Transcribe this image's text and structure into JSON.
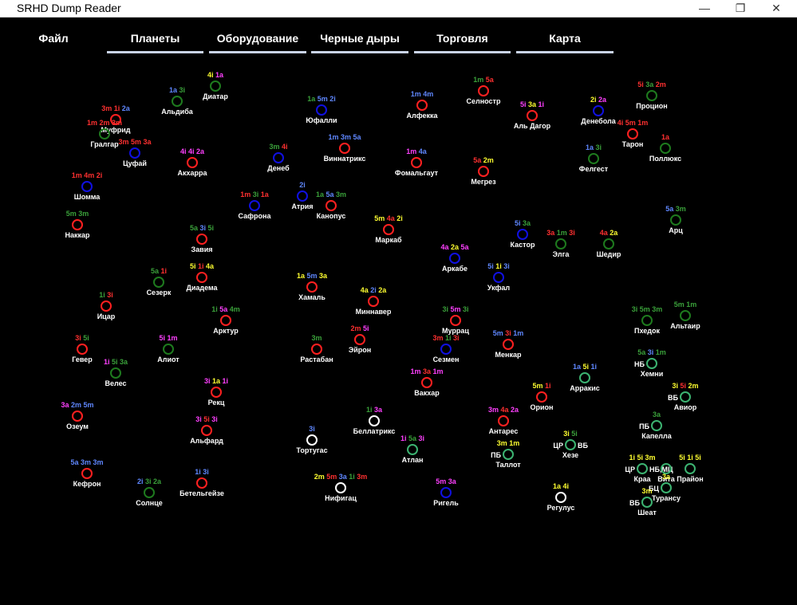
{
  "window": {
    "title": "SRHD Dump Reader",
    "controls": {
      "minimize": "—",
      "maximize": "❐",
      "close": "✕"
    }
  },
  "menu": {
    "file": "Файл",
    "tabs": [
      "Планеты",
      "Оборудование",
      "Черные дыры",
      "Торговля",
      "Карта"
    ]
  },
  "colors": {
    "red": "#ff2020",
    "blue": "#1010e0",
    "green": "#1e7a1e",
    "yellow": "#ffff00",
    "magenta": "#ff33ff",
    "lightblue": "#6699ff",
    "white": "#ffffff",
    "base": "#3cb371",
    "t_red": "#ff3030",
    "t_blue": "#5f87ff",
    "t_green": "#3aa03a",
    "t_yellow": "#ffff30",
    "t_magenta": "#ff40ff"
  },
  "systems": [
    {
      "name": "Диатар",
      "ring": "green",
      "tags": [
        [
          "4i",
          "yellow"
        ],
        [
          "1a",
          "magenta"
        ]
      ]
    },
    {
      "name": "Альдиба",
      "ring": "green",
      "tags": [
        [
          "1a",
          "blue"
        ],
        [
          "3i",
          "green"
        ]
      ]
    },
    {
      "name": "Муфрид",
      "ring": "red",
      "tags": [
        [
          "3m",
          "red"
        ],
        [
          "1i",
          "red"
        ],
        [
          "2a",
          "blue"
        ]
      ]
    },
    {
      "name": "Гралгар",
      "ring": "green",
      "tags": [
        [
          "1m",
          "red"
        ],
        [
          "2m",
          "red"
        ],
        [
          "3m",
          "red"
        ]
      ]
    },
    {
      "name": "Цуфай",
      "ring": "blue",
      "tags": [
        [
          "3m",
          "red"
        ],
        [
          "5m",
          "red"
        ],
        [
          "3a",
          "red"
        ]
      ]
    },
    {
      "name": "Акхарра",
      "ring": "red",
      "tags": [
        [
          "4i",
          "magenta"
        ],
        [
          "4i",
          "magenta"
        ],
        [
          "2a",
          "magenta"
        ]
      ]
    },
    {
      "name": "Шомма",
      "ring": "blue",
      "tags": [
        [
          "1m",
          "red"
        ],
        [
          "4m",
          "red"
        ],
        [
          "2i",
          "red"
        ]
      ]
    },
    {
      "name": "Наккар",
      "ring": "red",
      "tags": [
        [
          "5m",
          "green"
        ],
        [
          "3m",
          "green"
        ]
      ]
    },
    {
      "name": "Юфалли",
      "ring": "blue",
      "tags": [
        [
          "1a",
          "green"
        ],
        [
          "5m",
          "blue"
        ],
        [
          "2i",
          "blue"
        ]
      ]
    },
    {
      "name": "Денеб",
      "ring": "blue",
      "tags": [
        [
          "3m",
          "green"
        ],
        [
          "4i",
          "red"
        ]
      ]
    },
    {
      "name": "Виннатрикс",
      "ring": "red",
      "tags": [
        [
          "1m",
          "blue"
        ],
        [
          "3m",
          "blue"
        ],
        [
          "5a",
          "blue"
        ]
      ]
    },
    {
      "name": "Алфекка",
      "ring": "red",
      "tags": [
        [
          "1m",
          "blue"
        ],
        [
          "4m",
          "blue"
        ]
      ]
    },
    {
      "name": "Фомальгаут",
      "ring": "red",
      "tags": [
        [
          "1m",
          "magenta"
        ],
        [
          "4a",
          "blue"
        ]
      ]
    },
    {
      "name": "Селностр",
      "ring": "red",
      "tags": [
        [
          "1m",
          "green"
        ],
        [
          "5a",
          "red"
        ]
      ]
    },
    {
      "name": "Аль Дагор",
      "ring": "red",
      "tags": [
        [
          "5i",
          "magenta"
        ],
        [
          "3a",
          "yellow"
        ],
        [
          "1i",
          "magenta"
        ]
      ]
    },
    {
      "name": "Денебола",
      "ring": "blue",
      "tags": [
        [
          "2i",
          "yellow"
        ],
        [
          "2a",
          "magenta"
        ]
      ]
    },
    {
      "name": "Процион",
      "ring": "green",
      "tags": [
        [
          "5i",
          "red"
        ],
        [
          "3a",
          "green"
        ],
        [
          "2m",
          "red"
        ]
      ]
    },
    {
      "name": "Тарон",
      "ring": "red",
      "tags": [
        [
          "4i",
          "red"
        ],
        [
          "5m",
          "red"
        ],
        [
          "1m",
          "red"
        ]
      ]
    },
    {
      "name": "Поллюкс",
      "ring": "green",
      "tags": [
        [
          "1a",
          "red"
        ]
      ]
    },
    {
      "name": "Фелгест",
      "ring": "green",
      "tags": [
        [
          "1a",
          "blue"
        ],
        [
          "3i",
          "green"
        ]
      ]
    },
    {
      "name": "Мегрез",
      "ring": "red",
      "tags": [
        [
          "5a",
          "red"
        ],
        [
          "2m",
          "yellow"
        ]
      ]
    },
    {
      "name": "Сафрона",
      "ring": "blue",
      "tags": [
        [
          "1m",
          "red"
        ],
        [
          "3i",
          "green"
        ],
        [
          "1a",
          "red"
        ]
      ]
    },
    {
      "name": "Атрия",
      "ring": "blue",
      "tags": [
        [
          "2i",
          "blue"
        ]
      ]
    },
    {
      "name": "Канопус",
      "ring": "red",
      "tags": [
        [
          "1a",
          "green"
        ],
        [
          "5a",
          "blue"
        ],
        [
          "3m",
          "green"
        ]
      ]
    },
    {
      "name": "Завия",
      "ring": "red",
      "tags": [
        [
          "5a",
          "green"
        ],
        [
          "3i",
          "blue"
        ],
        [
          "5i",
          "green"
        ]
      ]
    },
    {
      "name": "Маркаб",
      "ring": "red",
      "tags": [
        [
          "5m",
          "yellow"
        ],
        [
          "4a",
          "red"
        ],
        [
          "2i",
          "yellow"
        ]
      ]
    },
    {
      "name": "Кастор",
      "ring": "blue",
      "tags": [
        [
          "5i",
          "blue"
        ],
        [
          "3a",
          "green"
        ]
      ]
    },
    {
      "name": "Элга",
      "ring": "green",
      "tags": [
        [
          "3a",
          "red"
        ],
        [
          "1m",
          "green"
        ],
        [
          "3i",
          "red"
        ]
      ]
    },
    {
      "name": "Шедир",
      "ring": "green",
      "tags": [
        [
          "4a",
          "red"
        ],
        [
          "2a",
          "yellow"
        ]
      ]
    },
    {
      "name": "Арц",
      "ring": "green",
      "tags": [
        [
          "5a",
          "blue"
        ],
        [
          "3m",
          "green"
        ]
      ]
    },
    {
      "name": "Аркабе",
      "ring": "blue",
      "tags": [
        [
          "4a",
          "magenta"
        ],
        [
          "2a",
          "yellow"
        ],
        [
          "5a",
          "magenta"
        ]
      ]
    },
    {
      "name": "Укфал",
      "ring": "blue",
      "tags": [
        [
          "5i",
          "blue"
        ],
        [
          "1i",
          "yellow"
        ],
        [
          "3i",
          "blue"
        ]
      ]
    },
    {
      "name": "Сезерк",
      "ring": "green",
      "tags": [
        [
          "5a",
          "green"
        ],
        [
          "1i",
          "red"
        ]
      ]
    },
    {
      "name": "Диадема",
      "ring": "red",
      "tags": [
        [
          "5i",
          "yellow"
        ],
        [
          "1i",
          "red"
        ],
        [
          "4a",
          "yellow"
        ]
      ]
    },
    {
      "name": "Хамаль",
      "ring": "red",
      "tags": [
        [
          "1a",
          "yellow"
        ],
        [
          "5m",
          "blue"
        ],
        [
          "3a",
          "yellow"
        ]
      ]
    },
    {
      "name": "Миннавер",
      "ring": "red",
      "tags": [
        [
          "4a",
          "yellow"
        ],
        [
          "2i",
          "blue"
        ],
        [
          "2a",
          "yellow"
        ]
      ]
    },
    {
      "name": "Ицар",
      "ring": "red",
      "tags": [
        [
          "1i",
          "green"
        ],
        [
          "3i",
          "red"
        ]
      ]
    },
    {
      "name": "Арктур",
      "ring": "red",
      "tags": [
        [
          "1i",
          "green"
        ],
        [
          "5a",
          "magenta"
        ],
        [
          "4m",
          "green"
        ]
      ]
    },
    {
      "name": "Муррац",
      "ring": "red",
      "tags": [
        [
          "3i",
          "green"
        ],
        [
          "5m",
          "magenta"
        ],
        [
          "3i",
          "green"
        ]
      ]
    },
    {
      "name": "Пхедок",
      "ring": "green",
      "tags": [
        [
          "3i",
          "green"
        ],
        [
          "5m",
          "green"
        ],
        [
          "3m",
          "green"
        ]
      ]
    },
    {
      "name": "Альтаир",
      "ring": "green",
      "tags": [
        [
          "5m",
          "green"
        ],
        [
          "1m",
          "green"
        ]
      ]
    },
    {
      "name": "Гевер",
      "ring": "red",
      "tags": [
        [
          "3i",
          "red"
        ],
        [
          "5i",
          "green"
        ]
      ]
    },
    {
      "name": "Алиот",
      "ring": "green",
      "tags": [
        [
          "5i",
          "magenta"
        ],
        [
          "1m",
          "magenta"
        ]
      ]
    },
    {
      "name": "Растабан",
      "ring": "red",
      "tags": [
        [
          "3m",
          "green"
        ]
      ]
    },
    {
      "name": "Эйрон",
      "ring": "red",
      "tags": [
        [
          "2m",
          "red"
        ],
        [
          "5i",
          "magenta"
        ]
      ]
    },
    {
      "name": "Сезмен",
      "ring": "blue",
      "tags": [
        [
          "3m",
          "red"
        ],
        [
          "1i",
          "green"
        ],
        [
          "3i",
          "red"
        ]
      ]
    },
    {
      "name": "Менкар",
      "ring": "red",
      "tags": [
        [
          "5m",
          "blue"
        ],
        [
          "3i",
          "red"
        ],
        [
          "1m",
          "blue"
        ]
      ]
    },
    {
      "name": "Велес",
      "ring": "green",
      "tags": [
        [
          "1i",
          "magenta"
        ],
        [
          "5i",
          "green"
        ],
        [
          "3a",
          "green"
        ]
      ]
    },
    {
      "name": "Вакхар",
      "ring": "red",
      "tags": [
        [
          "1m",
          "magenta"
        ],
        [
          "3a",
          "red"
        ],
        [
          "1m",
          "magenta"
        ]
      ]
    },
    {
      "name": "Рекц",
      "ring": "red",
      "tags": [
        [
          "3i",
          "magenta"
        ],
        [
          "1a",
          "yellow"
        ],
        [
          "1i",
          "magenta"
        ]
      ]
    },
    {
      "name": "Орион",
      "ring": "red",
      "tags": [
        [
          "5m",
          "yellow"
        ],
        [
          "1i",
          "red"
        ]
      ]
    },
    {
      "name": "Озеум",
      "ring": "red",
      "tags": [
        [
          "3a",
          "magenta"
        ],
        [
          "2m",
          "blue"
        ],
        [
          "5m",
          "blue"
        ]
      ]
    },
    {
      "name": "Альфард",
      "ring": "red",
      "tags": [
        [
          "3i",
          "magenta"
        ],
        [
          "5i",
          "red"
        ],
        [
          "3i",
          "magenta"
        ]
      ]
    },
    {
      "name": "Беллатрикс",
      "ring": "white",
      "tags": [
        [
          "1i",
          "green"
        ],
        [
          "3a",
          "magenta"
        ]
      ]
    },
    {
      "name": "Антарес",
      "ring": "red",
      "tags": [
        [
          "3m",
          "magenta"
        ],
        [
          "4a",
          "red"
        ],
        [
          "2a",
          "magenta"
        ]
      ]
    },
    {
      "name": "Тортугас",
      "ring": "white",
      "tags": [
        [
          "3i",
          "blue"
        ]
      ]
    },
    {
      "name": "Атлан",
      "ring": "base",
      "tags": [
        [
          "1i",
          "magenta"
        ],
        [
          "5a",
          "green"
        ],
        [
          "3i",
          "magenta"
        ]
      ]
    },
    {
      "name": "Кефрон",
      "ring": "red",
      "tags": [
        [
          "5a",
          "blue"
        ],
        [
          "3m",
          "blue"
        ],
        [
          "3m",
          "blue"
        ]
      ]
    },
    {
      "name": "Солнце",
      "ring": "green",
      "tags": [
        [
          "2i",
          "blue"
        ],
        [
          "3i",
          "green"
        ],
        [
          "2a",
          "green"
        ]
      ]
    },
    {
      "name": "Бетельгейзе",
      "ring": "red",
      "tags": [
        [
          "1i",
          "blue"
        ],
        [
          "3i",
          "blue"
        ]
      ]
    },
    {
      "name": "Нифигац",
      "ring": "white",
      "tags": [
        [
          "2m",
          "yellow"
        ],
        [
          "5m",
          "red"
        ],
        [
          "3a",
          "blue"
        ],
        [
          "1i",
          "green"
        ],
        [
          "3m",
          "red"
        ]
      ]
    },
    {
      "name": "Ригель",
      "ring": "blue",
      "tags": [
        [
          "5m",
          "magenta"
        ],
        [
          "3a",
          "magenta"
        ]
      ]
    },
    {
      "name": "Регулус",
      "ring": "white",
      "tags": [
        [
          "1a",
          "yellow"
        ],
        [
          "4i",
          "yellow"
        ]
      ]
    },
    {
      "name": "Арракис",
      "ring": "base",
      "tags": [
        [
          "1a",
          "blue"
        ],
        [
          "5i",
          "yellow"
        ],
        [
          "1i",
          "blue"
        ]
      ]
    },
    {
      "name": "Хемни",
      "ring": "base",
      "prefix": "НБ",
      "tags": [
        [
          "5a",
          "green"
        ],
        [
          "3i",
          "blue"
        ],
        [
          "1m",
          "green"
        ]
      ]
    },
    {
      "name": "Авиор",
      "ring": "base",
      "prefix": "ВБ",
      "tags": [
        [
          "3i",
          "yellow"
        ],
        [
          "5i",
          "red"
        ],
        [
          "2m",
          "yellow"
        ]
      ]
    },
    {
      "name": "Капелла",
      "ring": "base",
      "prefix": "ПБ",
      "tags": [
        [
          "3a",
          "green"
        ]
      ]
    },
    {
      "name": "Хезе",
      "ring": "base",
      "prefix": "ЦР",
      "suffix": "ВБ",
      "tags": [
        [
          "3i",
          "yellow"
        ],
        [
          "5i",
          "green"
        ]
      ]
    },
    {
      "name": "Таллот",
      "ring": "base",
      "prefix": "ПБ",
      "tags": [
        [
          "3m",
          "yellow"
        ],
        [
          "1m",
          "yellow"
        ]
      ]
    },
    {
      "name": "Краа",
      "ring": "base",
      "prefix": "ЦР",
      "suffix": "НБ,МЦ",
      "tags": [
        [
          "1i",
          "yellow"
        ],
        [
          "5i",
          "yellow"
        ],
        [
          "3m",
          "yellow"
        ]
      ]
    },
    {
      "name": "Вита",
      "ring": "base",
      "tags": []
    },
    {
      "name": "Прайон",
      "ring": "base",
      "tags": [
        [
          "5i",
          "yellow"
        ],
        [
          "1i",
          "yellow"
        ],
        [
          "5i",
          "yellow"
        ]
      ]
    },
    {
      "name": "Турансу",
      "ring": "base",
      "prefix": "БЦ",
      "tags": [
        [
          "3a",
          "yellow"
        ]
      ]
    },
    {
      "name": "Шеат",
      "ring": "base",
      "prefix": "ВБ",
      "tags": [
        [
          "3m",
          "yellow"
        ]
      ]
    }
  ]
}
